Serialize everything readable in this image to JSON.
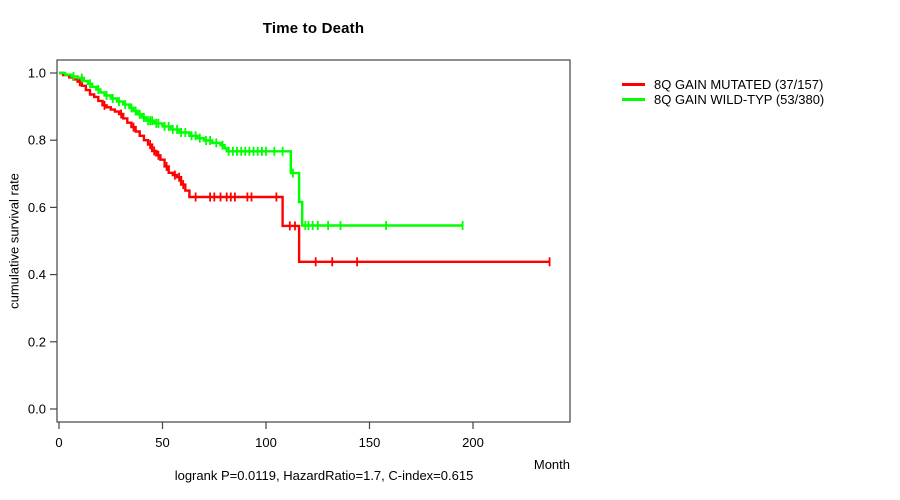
{
  "title": "Time to Death",
  "axes": {
    "ylabel": "cumulative survival rate",
    "xlabel": "Month"
  },
  "caption": "logrank P=0.0119, HazardRatio=1.7, C-index=0.615",
  "colors": {
    "axis": "#444444",
    "text": "#000000"
  },
  "legend": {
    "items": [
      {
        "label": "8Q GAIN MUTATED (37/157)",
        "color": "#ff0000"
      },
      {
        "label": "8Q GAIN WILD-TYP (53/380)",
        "color": "#00ff00"
      }
    ]
  },
  "chart_data": {
    "type": "line",
    "subtype": "kaplan-meier-step",
    "title": "Time to Death",
    "xlabel": "Month",
    "ylabel": "cumulative survival rate",
    "annotation": "logrank P=0.0119, HazardRatio=1.7, C-index=0.615",
    "xlim": [
      0,
      247
    ],
    "ylim": [
      -0.04,
      1.04
    ],
    "x_ticks": [
      0,
      50,
      100,
      150,
      200
    ],
    "y_ticks": [
      0.0,
      0.2,
      0.4,
      0.6,
      0.8,
      1.0
    ],
    "grid": false,
    "legend_position": "right",
    "series": [
      {
        "name": "8Q GAIN MUTATED (37/157)",
        "color": "#ff0000",
        "steps": [
          [
            0,
            1.0
          ],
          [
            2,
            0.994
          ],
          [
            5,
            0.987
          ],
          [
            7,
            0.981
          ],
          [
            9,
            0.974
          ],
          [
            11,
            0.962
          ],
          [
            13,
            0.949
          ],
          [
            15,
            0.936
          ],
          [
            17,
            0.929
          ],
          [
            19,
            0.917
          ],
          [
            21,
            0.904
          ],
          [
            23,
            0.898
          ],
          [
            25,
            0.891
          ],
          [
            27,
            0.885
          ],
          [
            29,
            0.878
          ],
          [
            31,
            0.865
          ],
          [
            33,
            0.852
          ],
          [
            35,
            0.839
          ],
          [
            37,
            0.826
          ],
          [
            39,
            0.813
          ],
          [
            41,
            0.8
          ],
          [
            43,
            0.787
          ],
          [
            45,
            0.768
          ],
          [
            47,
            0.755
          ],
          [
            49,
            0.742
          ],
          [
            51,
            0.722
          ],
          [
            53,
            0.703
          ],
          [
            55,
            0.696
          ],
          [
            57,
            0.69
          ],
          [
            59,
            0.668
          ],
          [
            61,
            0.65
          ],
          [
            63,
            0.631
          ],
          [
            108,
            0.545
          ],
          [
            116,
            0.438
          ],
          [
            237,
            0.438
          ]
        ],
        "censors": [
          [
            10,
            0.974
          ],
          [
            22,
            0.904
          ],
          [
            30,
            0.878
          ],
          [
            36,
            0.839
          ],
          [
            44,
            0.787
          ],
          [
            46,
            0.768
          ],
          [
            48,
            0.755
          ],
          [
            52,
            0.722
          ],
          [
            56,
            0.696
          ],
          [
            58,
            0.69
          ],
          [
            60,
            0.668
          ],
          [
            66,
            0.631
          ],
          [
            73,
            0.631
          ],
          [
            75,
            0.631
          ],
          [
            78,
            0.631
          ],
          [
            81,
            0.631
          ],
          [
            83,
            0.631
          ],
          [
            85,
            0.631
          ],
          [
            91,
            0.631
          ],
          [
            93,
            0.631
          ],
          [
            105,
            0.631
          ],
          [
            111.5,
            0.545
          ],
          [
            114,
            0.545
          ],
          [
            124,
            0.438
          ],
          [
            132,
            0.438
          ],
          [
            144,
            0.438
          ],
          [
            237,
            0.438
          ]
        ]
      },
      {
        "name": "8Q GAIN WILD-TYP (53/380)",
        "color": "#00ff00",
        "steps": [
          [
            0,
            1.0
          ],
          [
            3,
            0.995
          ],
          [
            6,
            0.99
          ],
          [
            9,
            0.985
          ],
          [
            12,
            0.976
          ],
          [
            14,
            0.968
          ],
          [
            16,
            0.959
          ],
          [
            18,
            0.951
          ],
          [
            20,
            0.942
          ],
          [
            22,
            0.933
          ],
          [
            25,
            0.924
          ],
          [
            28,
            0.915
          ],
          [
            31,
            0.906
          ],
          [
            34,
            0.896
          ],
          [
            36,
            0.887
          ],
          [
            38,
            0.877
          ],
          [
            40,
            0.868
          ],
          [
            42,
            0.858
          ],
          [
            46,
            0.85
          ],
          [
            50,
            0.841
          ],
          [
            54,
            0.832
          ],
          [
            58,
            0.823
          ],
          [
            63,
            0.813
          ],
          [
            67,
            0.806
          ],
          [
            70,
            0.799
          ],
          [
            74,
            0.792
          ],
          [
            78,
            0.785
          ],
          [
            80,
            0.776
          ],
          [
            81,
            0.767
          ],
          [
            112,
            0.702
          ],
          [
            116,
            0.616
          ],
          [
            117.5,
            0.546
          ],
          [
            195,
            0.546
          ]
        ],
        "censors": [
          [
            7,
            0.99
          ],
          [
            11,
            0.985
          ],
          [
            15,
            0.968
          ],
          [
            19,
            0.951
          ],
          [
            23,
            0.933
          ],
          [
            26,
            0.924
          ],
          [
            29,
            0.915
          ],
          [
            32,
            0.906
          ],
          [
            35,
            0.896
          ],
          [
            37,
            0.887
          ],
          [
            39,
            0.877
          ],
          [
            41,
            0.868
          ],
          [
            43,
            0.858
          ],
          [
            44,
            0.858
          ],
          [
            45,
            0.858
          ],
          [
            47,
            0.85
          ],
          [
            48,
            0.85
          ],
          [
            51,
            0.841
          ],
          [
            53,
            0.841
          ],
          [
            55,
            0.832
          ],
          [
            57,
            0.832
          ],
          [
            59,
            0.823
          ],
          [
            61,
            0.823
          ],
          [
            64,
            0.813
          ],
          [
            66,
            0.813
          ],
          [
            68,
            0.806
          ],
          [
            71,
            0.799
          ],
          [
            73,
            0.799
          ],
          [
            76,
            0.792
          ],
          [
            79,
            0.785
          ],
          [
            82,
            0.767
          ],
          [
            84,
            0.767
          ],
          [
            86,
            0.767
          ],
          [
            88,
            0.767
          ],
          [
            90,
            0.767
          ],
          [
            92,
            0.767
          ],
          [
            94,
            0.767
          ],
          [
            96,
            0.767
          ],
          [
            98,
            0.767
          ],
          [
            100,
            0.767
          ],
          [
            104,
            0.767
          ],
          [
            108,
            0.767
          ],
          [
            113,
            0.702
          ],
          [
            119,
            0.546
          ],
          [
            120.5,
            0.546
          ],
          [
            122.5,
            0.546
          ],
          [
            125,
            0.546
          ],
          [
            130,
            0.546
          ],
          [
            136,
            0.546
          ],
          [
            158,
            0.546
          ],
          [
            195,
            0.546
          ]
        ]
      }
    ]
  }
}
